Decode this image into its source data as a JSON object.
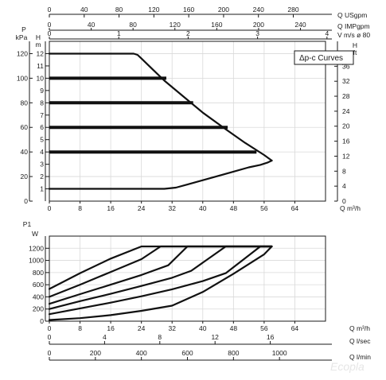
{
  "chart_data": [
    {
      "type": "line",
      "panel": "head",
      "legend_text": "Δp-c Curves",
      "legend_placement": "top-right",
      "grid": true,
      "x_axis": {
        "label": "Q m³/h",
        "range": [
          0,
          72
        ],
        "ticks": [
          0,
          8,
          16,
          24,
          32,
          40,
          48,
          56,
          64
        ]
      },
      "left_axis_kpa": {
        "title": "P",
        "unit": "kPa",
        "range": [
          0,
          130
        ],
        "ticks": [
          0,
          20,
          40,
          60,
          80,
          100,
          120
        ]
      },
      "left_axis_m": {
        "title": "H",
        "unit": "m",
        "range": [
          0,
          13
        ],
        "ticks": [
          1,
          2,
          3,
          4,
          5,
          6,
          7,
          8,
          9,
          10,
          11,
          12
        ]
      },
      "right_axis_ft": {
        "title": "H",
        "unit": "ft",
        "range": [
          0,
          42.65
        ],
        "ticks": [
          0,
          4,
          8,
          12,
          16,
          20,
          24,
          28,
          32,
          36
        ]
      },
      "top_axes": [
        {
          "label": "Q USgpm",
          "max": 316.99,
          "ticks": [
            0,
            40,
            80,
            120,
            160,
            200,
            240,
            280
          ]
        },
        {
          "label": "Q IMPgpm",
          "max": 263.95,
          "ticks": [
            0,
            40,
            80,
            120,
            160,
            200,
            240
          ]
        },
        {
          "label": "V m/s ø 80",
          "max": 3.979,
          "ticks": [
            0,
            1,
            2,
            3,
            4,
            5
          ]
        }
      ],
      "series": [
        {
          "style": "max",
          "x": [
            0,
            22,
            23,
            24,
            27,
            30,
            35,
            40,
            46,
            51,
            56,
            58
          ],
          "y": [
            12,
            12,
            11.9,
            11.6,
            10.7,
            9.8,
            8.5,
            7.2,
            5.85,
            4.75,
            3.75,
            3.3
          ]
        },
        {
          "style": "level",
          "x": [
            0,
            30.5
          ],
          "y": [
            10,
            10
          ]
        },
        {
          "style": "level",
          "x": [
            0,
            37.5
          ],
          "y": [
            8,
            8
          ]
        },
        {
          "style": "level",
          "x": [
            0,
            46.5
          ],
          "y": [
            6,
            6
          ]
        },
        {
          "style": "level",
          "x": [
            0,
            54
          ],
          "y": [
            4,
            4
          ]
        },
        {
          "style": "min",
          "x": [
            0,
            30,
            33,
            36,
            40,
            44,
            48,
            52,
            55,
            57,
            58
          ],
          "y": [
            1,
            1,
            1.1,
            1.35,
            1.7,
            2.05,
            2.4,
            2.75,
            2.95,
            3.15,
            3.3
          ]
        }
      ]
    },
    {
      "type": "line",
      "panel": "power",
      "grid": true,
      "x_axis": {
        "label": "Q m³/h",
        "range": [
          0,
          72
        ],
        "ticks": [
          0,
          8,
          16,
          24,
          32,
          40,
          48,
          56,
          64
        ]
      },
      "y_axis": {
        "title": "P1",
        "unit": "W",
        "range": [
          0,
          1400
        ],
        "ticks": [
          0,
          200,
          400,
          600,
          800,
          1000,
          1200
        ]
      },
      "bottom_axes": [
        {
          "label": "Q l/sec",
          "max": 20,
          "ticks": [
            0,
            4,
            8,
            12,
            16
          ]
        },
        {
          "label": "Q l/min",
          "max": 1200,
          "ticks": [
            0,
            200,
            400,
            600,
            800,
            1000
          ]
        }
      ],
      "series": [
        {
          "style": "min",
          "x": [
            0,
            8,
            16,
            24,
            32,
            40,
            48,
            56,
            58
          ],
          "y": [
            20,
            50,
            100,
            170,
            255,
            480,
            780,
            1100,
            1230
          ]
        },
        {
          "style": "level",
          "x": [
            0,
            8,
            16,
            24,
            32,
            40,
            46,
            55,
            58
          ],
          "y": [
            115,
            210,
            305,
            410,
            525,
            660,
            790,
            1230,
            1230
          ]
        },
        {
          "style": "level",
          "x": [
            0,
            8,
            16,
            24,
            32,
            37,
            46,
            58
          ],
          "y": [
            200,
            330,
            450,
            580,
            715,
            830,
            1230,
            1230
          ]
        },
        {
          "style": "level",
          "x": [
            0,
            8,
            16,
            24,
            31,
            36,
            58
          ],
          "y": [
            285,
            445,
            600,
            760,
            920,
            1230,
            1230
          ]
        },
        {
          "style": "level",
          "x": [
            0,
            8,
            16,
            24,
            29,
            58
          ],
          "y": [
            400,
            600,
            810,
            1020,
            1230,
            1230
          ]
        },
        {
          "style": "level",
          "x": [
            0,
            8,
            16,
            24,
            58
          ],
          "y": [
            530,
            790,
            1030,
            1230,
            1230
          ]
        }
      ]
    }
  ],
  "watermark": "Ecopla"
}
